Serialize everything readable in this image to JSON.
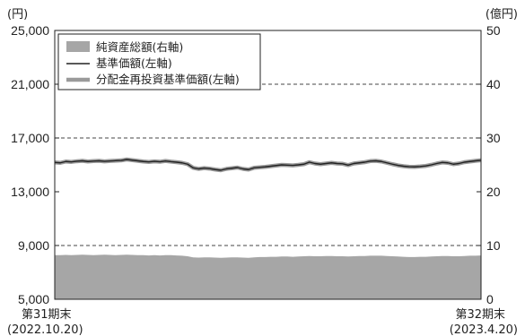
{
  "chart_data": {
    "type": "line",
    "left_axis": {
      "unit": "(円)",
      "ticks": [
        "25,000",
        "21,000",
        "17,000",
        "13,000",
        "9,000",
        "5,000"
      ],
      "range": [
        5000,
        25000
      ]
    },
    "right_axis": {
      "unit": "(億円)",
      "ticks": [
        "50",
        "40",
        "30",
        "20",
        "10",
        "0"
      ],
      "range": [
        0,
        50
      ]
    },
    "x_start": {
      "label": "第31期末",
      "date": "(2022.10.20)"
    },
    "x_end": {
      "label": "第32期末",
      "date": "(2023.4.20)"
    },
    "grid": "dashed horizontal at 21,000 / 17,000 / 9,000",
    "legend": [
      {
        "label": "純資産総額(右軸)",
        "kind": "area",
        "color": "#a6a6a6"
      },
      {
        "label": "基準価額(左軸)",
        "kind": "line",
        "color": "#222222"
      },
      {
        "label": "分配金再投資基準価額(左軸)",
        "kind": "line",
        "color": "#9a9a9a"
      }
    ],
    "series": [
      {
        "name": "基準価額(左軸)",
        "values": [
          15180,
          15150,
          15250,
          15220,
          15270,
          15300,
          15250,
          15280,
          15300,
          15260,
          15290,
          15310,
          15330,
          15400,
          15350,
          15300,
          15250,
          15220,
          15260,
          15230,
          15290,
          15240,
          15200,
          15150,
          15050,
          14780,
          14700,
          14760,
          14720,
          14650,
          14600,
          14700,
          14750,
          14800,
          14700,
          14650,
          14780,
          14820,
          14850,
          14900,
          14950,
          15000,
          14980,
          14960,
          15000,
          15050,
          15200,
          15100,
          15050,
          15100,
          15150,
          15100,
          15080,
          14980,
          15100,
          15150,
          15200,
          15280,
          15300,
          15250,
          15150,
          15050,
          14960,
          14900,
          14860,
          14850,
          14880,
          14920,
          15000,
          15100,
          15180,
          15150,
          15050,
          15100,
          15200,
          15250,
          15300,
          15340
        ]
      },
      {
        "name": "分配金再投資基準価額(左軸)",
        "values": [
          15180,
          15150,
          15250,
          15220,
          15270,
          15300,
          15250,
          15280,
          15300,
          15260,
          15290,
          15310,
          15330,
          15400,
          15350,
          15300,
          15250,
          15220,
          15260,
          15230,
          15290,
          15240,
          15200,
          15150,
          15050,
          14780,
          14700,
          14760,
          14720,
          14650,
          14600,
          14700,
          14750,
          14800,
          14700,
          14650,
          14780,
          14820,
          14850,
          14900,
          14950,
          15000,
          14980,
          14960,
          15000,
          15050,
          15200,
          15100,
          15050,
          15100,
          15150,
          15100,
          15080,
          14980,
          15100,
          15150,
          15200,
          15280,
          15300,
          15250,
          15150,
          15050,
          14960,
          14900,
          14860,
          14850,
          14880,
          14920,
          15000,
          15100,
          15180,
          15150,
          15050,
          15100,
          15200,
          15250,
          15300,
          15340
        ]
      },
      {
        "name": "純資産総額(右軸)",
        "values": [
          8.2,
          8.2,
          8.25,
          8.2,
          8.25,
          8.3,
          8.25,
          8.2,
          8.25,
          8.3,
          8.25,
          8.2,
          8.25,
          8.3,
          8.25,
          8.2,
          8.2,
          8.15,
          8.2,
          8.15,
          8.2,
          8.2,
          8.15,
          8.1,
          8.0,
          7.8,
          7.75,
          7.8,
          7.8,
          7.75,
          7.7,
          7.75,
          7.8,
          7.8,
          7.75,
          7.7,
          7.8,
          7.85,
          7.85,
          7.9,
          7.9,
          7.95,
          7.95,
          7.9,
          7.95,
          8.0,
          8.05,
          8.0,
          8.0,
          8.05,
          8.05,
          8.0,
          8.0,
          7.95,
          8.0,
          8.05,
          8.05,
          8.1,
          8.1,
          8.1,
          8.05,
          8.0,
          7.95,
          7.9,
          7.85,
          7.85,
          7.9,
          7.9,
          7.95,
          8.0,
          8.05,
          8.05,
          8.0,
          8.0,
          8.05,
          8.1,
          8.1,
          8.15
        ]
      }
    ]
  }
}
